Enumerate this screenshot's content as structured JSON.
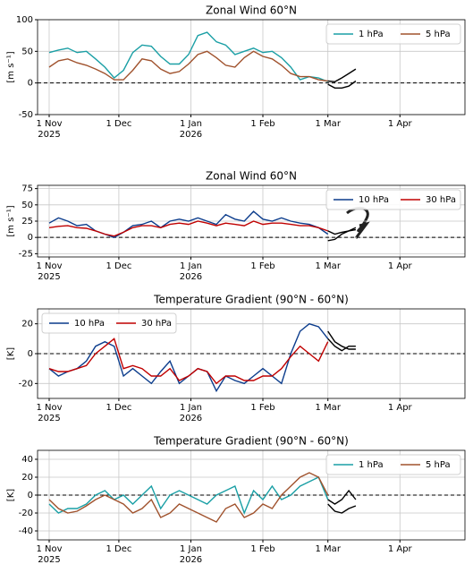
{
  "chart_data": [
    {
      "type": "line",
      "title": "Zonal Wind 60°N",
      "ylabel": "[m s⁻¹]",
      "xlim": [
        "2025-10-27",
        "2026-04-29"
      ],
      "ylim": [
        -50,
        100
      ],
      "yticks": [
        -50,
        0,
        50,
        100
      ],
      "xticks": [
        {
          "value": "2025-11-01",
          "label": "1 Nov\n2025"
        },
        {
          "value": "2025-12-01",
          "label": "1 Dec"
        },
        {
          "value": "2026-01-01",
          "label": "1 Jan\n2026"
        },
        {
          "value": "2026-02-01",
          "label": "1 Feb"
        },
        {
          "value": "2026-03-01",
          "label": "1 Mar"
        },
        {
          "value": "2026-04-01",
          "label": "1 Apr"
        }
      ],
      "grid": true,
      "hline": 0,
      "legend": "upper right",
      "series": [
        {
          "name": "1 hPa",
          "color": "#1a9fa5",
          "x": [
            "2025-11-01",
            "2025-11-05",
            "2025-11-09",
            "2025-11-13",
            "2025-11-17",
            "2025-11-21",
            "2025-11-25",
            "2025-11-29",
            "2025-12-03",
            "2025-12-07",
            "2025-12-11",
            "2025-12-15",
            "2025-12-19",
            "2025-12-23",
            "2025-12-27",
            "2025-12-31",
            "2026-01-04",
            "2026-01-08",
            "2026-01-12",
            "2026-01-16",
            "2026-01-20",
            "2026-01-24",
            "2026-01-28",
            "2026-02-01",
            "2026-02-05",
            "2026-02-09",
            "2026-02-13",
            "2026-02-17",
            "2026-02-21",
            "2026-02-25",
            "2026-03-01"
          ],
          "values": [
            48,
            52,
            55,
            48,
            50,
            38,
            25,
            8,
            20,
            48,
            60,
            58,
            42,
            30,
            30,
            45,
            75,
            80,
            65,
            60,
            45,
            50,
            55,
            48,
            50,
            40,
            25,
            5,
            10,
            8,
            2
          ]
        },
        {
          "name": "5 hPa",
          "color": "#a0522d",
          "x": [
            "2025-11-01",
            "2025-11-05",
            "2025-11-09",
            "2025-11-13",
            "2025-11-17",
            "2025-11-21",
            "2025-11-25",
            "2025-11-29",
            "2025-12-03",
            "2025-12-07",
            "2025-12-11",
            "2025-12-15",
            "2025-12-19",
            "2025-12-23",
            "2025-12-27",
            "2025-12-31",
            "2026-01-04",
            "2026-01-08",
            "2026-01-12",
            "2026-01-16",
            "2026-01-20",
            "2026-01-24",
            "2026-01-28",
            "2026-02-01",
            "2026-02-05",
            "2026-02-09",
            "2026-02-13",
            "2026-02-17",
            "2026-02-21",
            "2026-02-25",
            "2026-03-01"
          ],
          "values": [
            25,
            35,
            38,
            32,
            28,
            22,
            15,
            5,
            5,
            20,
            38,
            35,
            22,
            15,
            18,
            30,
            45,
            50,
            40,
            28,
            25,
            40,
            50,
            42,
            38,
            28,
            15,
            10,
            10,
            5,
            3
          ]
        },
        {
          "color": "#000000",
          "x": [
            "2026-03-01",
            "2026-03-04",
            "2026-03-07",
            "2026-03-10",
            "2026-03-13"
          ],
          "values": [
            3,
            2,
            8,
            15,
            22
          ]
        },
        {
          "color": "#000000",
          "x": [
            "2026-03-01",
            "2026-03-04",
            "2026-03-07",
            "2026-03-10",
            "2026-03-13"
          ],
          "values": [
            -2,
            -8,
            -8,
            -5,
            3
          ]
        }
      ]
    },
    {
      "type": "line",
      "title": "Zonal Wind 60°N",
      "ylabel": "[m s⁻¹]",
      "xlim": [
        "2025-10-27",
        "2026-04-29"
      ],
      "ylim": [
        -30,
        80
      ],
      "yticks": [
        -25,
        0,
        25,
        50,
        75
      ],
      "xticks": [
        {
          "value": "2025-11-01",
          "label": "1 Nov\n2025"
        },
        {
          "value": "2025-12-01",
          "label": "1 Dec"
        },
        {
          "value": "2026-01-01",
          "label": "1 Jan\n2026"
        },
        {
          "value": "2026-02-01",
          "label": "1 Feb"
        },
        {
          "value": "2026-03-01",
          "label": "1 Mar"
        },
        {
          "value": "2026-04-01",
          "label": "1 Apr"
        }
      ],
      "grid": true,
      "hline": 0,
      "legend": "upper right",
      "series": [
        {
          "name": "10 hPa",
          "color": "#0b3c8c",
          "x": [
            "2025-11-01",
            "2025-11-05",
            "2025-11-09",
            "2025-11-13",
            "2025-11-17",
            "2025-11-21",
            "2025-11-25",
            "2025-11-29",
            "2025-12-03",
            "2025-12-07",
            "2025-12-11",
            "2025-12-15",
            "2025-12-19",
            "2025-12-23",
            "2025-12-27",
            "2025-12-31",
            "2026-01-04",
            "2026-01-08",
            "2026-01-12",
            "2026-01-16",
            "2026-01-20",
            "2026-01-24",
            "2026-01-28",
            "2026-02-01",
            "2026-02-05",
            "2026-02-09",
            "2026-02-13",
            "2026-02-17",
            "2026-02-21",
            "2026-02-25",
            "2026-03-01"
          ],
          "values": [
            22,
            30,
            25,
            18,
            20,
            10,
            5,
            0,
            8,
            18,
            20,
            25,
            15,
            25,
            28,
            25,
            30,
            25,
            20,
            35,
            28,
            25,
            40,
            28,
            25,
            30,
            25,
            22,
            20,
            15,
            5
          ]
        },
        {
          "name": "30 hPa",
          "color": "#c00000",
          "x": [
            "2025-11-01",
            "2025-11-05",
            "2025-11-09",
            "2025-11-13",
            "2025-11-17",
            "2025-11-21",
            "2025-11-25",
            "2025-11-29",
            "2025-12-03",
            "2025-12-07",
            "2025-12-11",
            "2025-12-15",
            "2025-12-19",
            "2025-12-23",
            "2025-12-27",
            "2025-12-31",
            "2026-01-04",
            "2026-01-08",
            "2026-01-12",
            "2026-01-16",
            "2026-01-20",
            "2026-01-24",
            "2026-01-28",
            "2026-02-01",
            "2026-02-05",
            "2026-02-09",
            "2026-02-13",
            "2026-02-17",
            "2026-02-21",
            "2026-02-25",
            "2026-03-01"
          ],
          "values": [
            15,
            17,
            18,
            15,
            14,
            10,
            5,
            2,
            8,
            15,
            18,
            18,
            15,
            20,
            22,
            20,
            25,
            22,
            18,
            22,
            20,
            18,
            25,
            20,
            22,
            22,
            20,
            18,
            18,
            15,
            10
          ]
        },
        {
          "color": "#000000",
          "x": [
            "2026-03-01",
            "2026-03-04",
            "2026-03-07",
            "2026-03-10",
            "2026-03-13"
          ],
          "values": [
            -5,
            -3,
            5,
            10,
            15
          ]
        },
        {
          "color": "#000000",
          "x": [
            "2026-03-01",
            "2026-03-04",
            "2026-03-07",
            "2026-03-10",
            "2026-03-13"
          ],
          "values": [
            10,
            5,
            8,
            10,
            12
          ]
        }
      ]
    },
    {
      "type": "line",
      "title": "Temperature Gradient (90°N - 60°N)",
      "ylabel": "[K]",
      "xlim": [
        "2025-10-27",
        "2026-04-29"
      ],
      "ylim": [
        -30,
        30
      ],
      "yticks": [
        -20,
        0,
        20
      ],
      "xticks": [
        {
          "value": "2025-11-01",
          "label": "1 Nov\n2025"
        },
        {
          "value": "2025-12-01",
          "label": "1 Dec"
        },
        {
          "value": "2026-01-01",
          "label": "1 Jan\n2026"
        },
        {
          "value": "2026-02-01",
          "label": "1 Feb"
        },
        {
          "value": "2026-03-01",
          "label": "1 Mar"
        },
        {
          "value": "2026-04-01",
          "label": "1 Apr"
        }
      ],
      "grid": true,
      "hline": 0,
      "legend": "upper left",
      "series": [
        {
          "name": "10 hPa",
          "color": "#0b3c8c",
          "x": [
            "2025-11-01",
            "2025-11-05",
            "2025-11-09",
            "2025-11-13",
            "2025-11-17",
            "2025-11-21",
            "2025-11-25",
            "2025-11-29",
            "2025-12-03",
            "2025-12-07",
            "2025-12-11",
            "2025-12-15",
            "2025-12-19",
            "2025-12-23",
            "2025-12-27",
            "2025-12-31",
            "2026-01-04",
            "2026-01-08",
            "2026-01-12",
            "2026-01-16",
            "2026-01-20",
            "2026-01-24",
            "2026-01-28",
            "2026-02-01",
            "2026-02-05",
            "2026-02-09",
            "2026-02-13",
            "2026-02-17",
            "2026-02-21",
            "2026-02-25",
            "2026-03-01"
          ],
          "values": [
            -10,
            -15,
            -12,
            -10,
            -5,
            5,
            8,
            5,
            -15,
            -10,
            -15,
            -20,
            -12,
            -5,
            -20,
            -15,
            -10,
            -12,
            -25,
            -15,
            -18,
            -20,
            -15,
            -10,
            -15,
            -20,
            0,
            15,
            20,
            18,
            10
          ]
        },
        {
          "name": "30 hPa",
          "color": "#c00000",
          "x": [
            "2025-11-01",
            "2025-11-05",
            "2025-11-09",
            "2025-11-13",
            "2025-11-17",
            "2025-11-21",
            "2025-11-25",
            "2025-11-29",
            "2025-12-03",
            "2025-12-07",
            "2025-12-11",
            "2025-12-15",
            "2025-12-19",
            "2025-12-23",
            "2025-12-27",
            "2025-12-31",
            "2026-01-04",
            "2026-01-08",
            "2026-01-12",
            "2026-01-16",
            "2026-01-20",
            "2026-01-24",
            "2026-01-28",
            "2026-02-01",
            "2026-02-05",
            "2026-02-09",
            "2026-02-13",
            "2026-02-17",
            "2026-02-21",
            "2026-02-25",
            "2026-03-01"
          ],
          "values": [
            -10,
            -12,
            -12,
            -10,
            -8,
            0,
            5,
            10,
            -10,
            -8,
            -10,
            -15,
            -15,
            -10,
            -18,
            -15,
            -10,
            -12,
            -20,
            -15,
            -15,
            -18,
            -18,
            -15,
            -15,
            -10,
            -2,
            5,
            0,
            -5,
            8
          ]
        },
        {
          "color": "#000000",
          "x": [
            "2026-03-01",
            "2026-03-04",
            "2026-03-07",
            "2026-03-10",
            "2026-03-13"
          ],
          "values": [
            10,
            5,
            2,
            5,
            5
          ]
        },
        {
          "color": "#000000",
          "x": [
            "2026-03-01",
            "2026-03-04",
            "2026-03-07",
            "2026-03-10",
            "2026-03-13"
          ],
          "values": [
            15,
            8,
            5,
            3,
            3
          ]
        }
      ]
    },
    {
      "type": "line",
      "title": "Temperature Gradient (90°N - 60°N)",
      "ylabel": "[K]",
      "xlim": [
        "2025-10-27",
        "2026-04-29"
      ],
      "ylim": [
        -50,
        50
      ],
      "yticks": [
        -40,
        -20,
        0,
        20,
        40
      ],
      "xticks": [
        {
          "value": "2025-11-01",
          "label": "1 Nov\n2025"
        },
        {
          "value": "2025-12-01",
          "label": "1 Dec"
        },
        {
          "value": "2026-01-01",
          "label": "1 Jan\n2026"
        },
        {
          "value": "2026-02-01",
          "label": "1 Feb"
        },
        {
          "value": "2026-03-01",
          "label": "1 Mar"
        },
        {
          "value": "2026-04-01",
          "label": "1 Apr"
        }
      ],
      "grid": true,
      "hline": 0,
      "legend": "upper right",
      "series": [
        {
          "name": "1 hPa",
          "color": "#1a9fa5",
          "x": [
            "2025-11-01",
            "2025-11-05",
            "2025-11-09",
            "2025-11-13",
            "2025-11-17",
            "2025-11-21",
            "2025-11-25",
            "2025-11-29",
            "2025-12-03",
            "2025-12-07",
            "2025-12-11",
            "2025-12-15",
            "2025-12-19",
            "2025-12-23",
            "2025-12-27",
            "2025-12-31",
            "2026-01-04",
            "2026-01-08",
            "2026-01-12",
            "2026-01-16",
            "2026-01-20",
            "2026-01-24",
            "2026-01-28",
            "2026-02-01",
            "2026-02-05",
            "2026-02-09",
            "2026-02-13",
            "2026-02-17",
            "2026-02-21",
            "2026-02-25",
            "2026-03-01"
          ],
          "values": [
            -10,
            -20,
            -15,
            -15,
            -10,
            0,
            5,
            -5,
            0,
            -10,
            0,
            10,
            -15,
            0,
            5,
            0,
            -5,
            -10,
            0,
            5,
            10,
            -20,
            5,
            -5,
            10,
            -5,
            0,
            10,
            15,
            20,
            -5
          ]
        },
        {
          "name": "5 hPa",
          "color": "#a0522d",
          "x": [
            "2025-11-01",
            "2025-11-05",
            "2025-11-09",
            "2025-11-13",
            "2025-11-17",
            "2025-11-21",
            "2025-11-25",
            "2025-11-29",
            "2025-12-03",
            "2025-12-07",
            "2025-12-11",
            "2025-12-15",
            "2025-12-19",
            "2025-12-23",
            "2025-12-27",
            "2025-12-31",
            "2026-01-04",
            "2026-01-08",
            "2026-01-12",
            "2026-01-16",
            "2026-01-20",
            "2026-01-24",
            "2026-01-28",
            "2026-02-01",
            "2026-02-05",
            "2026-02-09",
            "2026-02-13",
            "2026-02-17",
            "2026-02-21",
            "2026-02-25",
            "2026-03-01"
          ],
          "values": [
            -5,
            -15,
            -20,
            -18,
            -12,
            -5,
            0,
            -5,
            -10,
            -20,
            -15,
            -5,
            -25,
            -20,
            -10,
            -15,
            -20,
            -25,
            -30,
            -15,
            -10,
            -25,
            -20,
            -10,
            -15,
            0,
            10,
            20,
            25,
            20,
            0
          ]
        },
        {
          "color": "#000000",
          "x": [
            "2026-03-01",
            "2026-03-04",
            "2026-03-07",
            "2026-03-10",
            "2026-03-13"
          ],
          "values": [
            -5,
            -10,
            -5,
            5,
            -5
          ]
        },
        {
          "color": "#000000",
          "x": [
            "2026-03-01",
            "2026-03-04",
            "2026-03-07",
            "2026-03-10",
            "2026-03-13"
          ],
          "values": [
            -10,
            -18,
            -20,
            -15,
            -12
          ]
        }
      ]
    }
  ]
}
